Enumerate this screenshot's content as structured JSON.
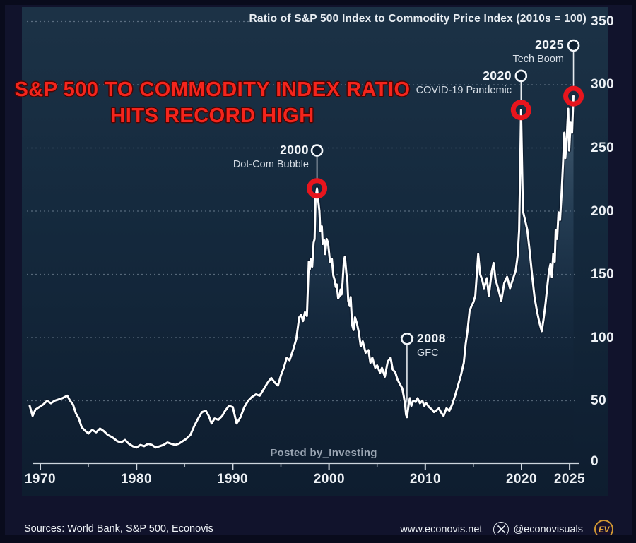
{
  "header": {
    "chart_title": "Ratio of S&P 500 Index to Commodity Price Index (2010s = 100)",
    "headline_line1": "S&P 500 TO COMMODITY INDEX RATIO",
    "headline_line2": "HITS RECORD HIGH",
    "headline_color": "#f5251c"
  },
  "watermark": "Posted by_Investing",
  "footer": {
    "sources": "Sources: World Bank, S&P 500, Econovis",
    "website": "www.econovis.net",
    "x_icon": "x-social-icon",
    "x_handle": "@econovisuals",
    "logo_text": "EV",
    "logo_ring_color": "#cf9733"
  },
  "chart_data": {
    "type": "line",
    "title": "Ratio of S&P 500 Index to Commodity Price Index (2010s = 100)",
    "xlabel": "",
    "ylabel": "",
    "xlim": [
      1968.5,
      2026.5
    ],
    "ylim": [
      0,
      350
    ],
    "grid": "dotted horizontal",
    "line_color": "#ffffff",
    "accent_color": "#e8151d",
    "x_ticks": [
      1970,
      1980,
      1990,
      2000,
      2010,
      2020,
      2025
    ],
    "x_tick_labels": [
      "1970",
      "1980",
      "1990",
      "2000",
      "2010",
      "2020",
      "2025"
    ],
    "y_ticks": [
      50,
      100,
      150,
      200,
      250,
      300,
      350
    ],
    "y_tick_labels_top_down": [
      "350",
      "300",
      "250",
      "200",
      "150",
      "100",
      "50",
      "0"
    ],
    "annotations": [
      {
        "year_label": "2000",
        "event": "Dot-Com Bubble",
        "x_year": 1998.75,
        "marker_value": 248,
        "curve_value": 218,
        "red_ring": true,
        "label_side": "left"
      },
      {
        "year_label": "2008",
        "event": "GFC",
        "x_year": 2008.1,
        "marker_value": 99,
        "curve_value": 37,
        "red_ring": false,
        "label_side": "right"
      },
      {
        "year_label": "2020",
        "event": "COVID-19 Pandemic",
        "x_year": 2019.95,
        "marker_value": 307,
        "curve_value": 280,
        "red_ring": true,
        "label_side": "left"
      },
      {
        "year_label": "2025",
        "event": "Tech Boom",
        "x_year": 2025.4,
        "marker_value": 331,
        "curve_value": 291,
        "red_ring": true,
        "label_side": "left"
      }
    ],
    "series": [
      {
        "name": "S&P 500 to Commodity Price Index ratio (2010s = 100)",
        "points": [
          [
            1968.9,
            46
          ],
          [
            1969.2,
            38
          ],
          [
            1969.5,
            43
          ],
          [
            1969.9,
            45
          ],
          [
            1970.3,
            47
          ],
          [
            1970.7,
            50
          ],
          [
            1971.1,
            48
          ],
          [
            1971.5,
            50
          ],
          [
            1971.9,
            51
          ],
          [
            1972.3,
            52
          ],
          [
            1972.8,
            54
          ],
          [
            1973.1,
            50
          ],
          [
            1973.4,
            47
          ],
          [
            1973.7,
            40
          ],
          [
            1974.0,
            36
          ],
          [
            1974.3,
            29
          ],
          [
            1974.7,
            26
          ],
          [
            1975.0,
            24
          ],
          [
            1975.4,
            27
          ],
          [
            1975.8,
            25
          ],
          [
            1976.2,
            28
          ],
          [
            1976.6,
            26
          ],
          [
            1977.0,
            23
          ],
          [
            1977.5,
            21
          ],
          [
            1978.0,
            18
          ],
          [
            1978.4,
            17
          ],
          [
            1978.8,
            19
          ],
          [
            1979.2,
            16
          ],
          [
            1979.6,
            14
          ],
          [
            1980.0,
            13
          ],
          [
            1980.4,
            15
          ],
          [
            1980.8,
            14
          ],
          [
            1981.2,
            16
          ],
          [
            1981.6,
            15
          ],
          [
            1982.0,
            13
          ],
          [
            1982.4,
            14
          ],
          [
            1982.8,
            15
          ],
          [
            1983.2,
            17
          ],
          [
            1983.6,
            16
          ],
          [
            1984.0,
            15
          ],
          [
            1984.4,
            16
          ],
          [
            1984.8,
            18
          ],
          [
            1985.2,
            20
          ],
          [
            1985.6,
            23
          ],
          [
            1986.0,
            30
          ],
          [
            1986.4,
            36
          ],
          [
            1986.8,
            41
          ],
          [
            1987.2,
            42
          ],
          [
            1987.5,
            38
          ],
          [
            1987.8,
            32
          ],
          [
            1988.1,
            36
          ],
          [
            1988.5,
            35
          ],
          [
            1988.9,
            38
          ],
          [
            1989.2,
            42
          ],
          [
            1989.6,
            46
          ],
          [
            1990.0,
            45
          ],
          [
            1990.4,
            32
          ],
          [
            1990.8,
            37
          ],
          [
            1991.2,
            45
          ],
          [
            1991.6,
            50
          ],
          [
            1992.0,
            53
          ],
          [
            1992.4,
            55
          ],
          [
            1992.8,
            54
          ],
          [
            1993.2,
            59
          ],
          [
            1993.6,
            64
          ],
          [
            1994.0,
            68
          ],
          [
            1994.4,
            64
          ],
          [
            1994.7,
            62
          ],
          [
            1995.0,
            70
          ],
          [
            1995.3,
            76
          ],
          [
            1995.6,
            84
          ],
          [
            1995.9,
            82
          ],
          [
            1996.3,
            91
          ],
          [
            1996.6,
            99
          ],
          [
            1996.9,
            116
          ],
          [
            1997.1,
            118
          ],
          [
            1997.3,
            113
          ],
          [
            1997.5,
            120
          ],
          [
            1997.7,
            117
          ],
          [
            1997.9,
            160
          ],
          [
            1998.0,
            154
          ],
          [
            1998.1,
            162
          ],
          [
            1998.25,
            156
          ],
          [
            1998.4,
            175
          ],
          [
            1998.5,
            178
          ],
          [
            1998.6,
            210
          ],
          [
            1998.75,
            218
          ],
          [
            1998.9,
            207
          ],
          [
            1999.0,
            200
          ],
          [
            1999.1,
            184
          ],
          [
            1999.25,
            188
          ],
          [
            1999.35,
            174
          ],
          [
            1999.5,
            177
          ],
          [
            1999.6,
            166
          ],
          [
            1999.75,
            178
          ],
          [
            1999.9,
            175
          ],
          [
            2000.1,
            160
          ],
          [
            2000.3,
            162
          ],
          [
            2000.45,
            149
          ],
          [
            2000.6,
            145
          ],
          [
            2000.7,
            140
          ],
          [
            2000.8,
            142
          ],
          [
            2000.95,
            131
          ],
          [
            2001.1,
            133
          ],
          [
            2001.2,
            138
          ],
          [
            2001.3,
            134
          ],
          [
            2001.4,
            143
          ],
          [
            2001.55,
            161
          ],
          [
            2001.65,
            164
          ],
          [
            2001.8,
            151
          ],
          [
            2001.9,
            145
          ],
          [
            2002.0,
            129
          ],
          [
            2002.15,
            125
          ],
          [
            2002.25,
            132
          ],
          [
            2002.4,
            110
          ],
          [
            2002.55,
            106
          ],
          [
            2002.7,
            116
          ],
          [
            2002.9,
            111
          ],
          [
            2003.1,
            104
          ],
          [
            2003.3,
            93
          ],
          [
            2003.5,
            97
          ],
          [
            2003.8,
            88
          ],
          [
            2004.1,
            90
          ],
          [
            2004.3,
            80
          ],
          [
            2004.5,
            84
          ],
          [
            2004.8,
            76
          ],
          [
            2005.0,
            78
          ],
          [
            2005.3,
            72
          ],
          [
            2005.5,
            76
          ],
          [
            2005.8,
            69
          ],
          [
            2006.1,
            81
          ],
          [
            2006.4,
            84
          ],
          [
            2006.6,
            75
          ],
          [
            2006.9,
            72
          ],
          [
            2007.1,
            67
          ],
          [
            2007.3,
            64
          ],
          [
            2007.6,
            60
          ],
          [
            2007.75,
            54
          ],
          [
            2007.9,
            47
          ],
          [
            2008.0,
            39
          ],
          [
            2008.1,
            37
          ],
          [
            2008.3,
            48
          ],
          [
            2008.4,
            52
          ],
          [
            2008.55,
            46
          ],
          [
            2008.75,
            50
          ],
          [
            2009.0,
            49
          ],
          [
            2009.2,
            52
          ],
          [
            2009.45,
            48
          ],
          [
            2009.7,
            50
          ],
          [
            2009.9,
            46
          ],
          [
            2010.1,
            48
          ],
          [
            2010.4,
            45
          ],
          [
            2010.7,
            43
          ],
          [
            2010.9,
            41
          ],
          [
            2011.1,
            42
          ],
          [
            2011.4,
            44
          ],
          [
            2011.7,
            40
          ],
          [
            2011.9,
            38
          ],
          [
            2012.2,
            44
          ],
          [
            2012.5,
            42
          ],
          [
            2012.8,
            47
          ],
          [
            2013.1,
            54
          ],
          [
            2013.4,
            62
          ],
          [
            2013.7,
            70
          ],
          [
            2014.0,
            80
          ],
          [
            2014.2,
            95
          ],
          [
            2014.4,
            106
          ],
          [
            2014.6,
            121
          ],
          [
            2014.8,
            125
          ],
          [
            2015.0,
            128
          ],
          [
            2015.2,
            133
          ],
          [
            2015.5,
            166
          ],
          [
            2015.7,
            150
          ],
          [
            2015.9,
            146
          ],
          [
            2016.1,
            139
          ],
          [
            2016.4,
            147
          ],
          [
            2016.6,
            133
          ],
          [
            2016.9,
            152
          ],
          [
            2017.1,
            159
          ],
          [
            2017.3,
            146
          ],
          [
            2017.6,
            138
          ],
          [
            2017.9,
            129
          ],
          [
            2018.2,
            143
          ],
          [
            2018.5,
            148
          ],
          [
            2018.8,
            139
          ],
          [
            2019.1,
            146
          ],
          [
            2019.4,
            153
          ],
          [
            2019.6,
            165
          ],
          [
            2019.75,
            185
          ],
          [
            2019.85,
            230
          ],
          [
            2019.95,
            280
          ],
          [
            2020.15,
            200
          ],
          [
            2020.4,
            192
          ],
          [
            2020.6,
            185
          ],
          [
            2020.85,
            168
          ],
          [
            2021.1,
            149
          ],
          [
            2021.35,
            132
          ],
          [
            2021.6,
            121
          ],
          [
            2021.85,
            112
          ],
          [
            2022.1,
            105
          ],
          [
            2022.3,
            115
          ],
          [
            2022.5,
            127
          ],
          [
            2022.7,
            142
          ],
          [
            2022.85,
            152
          ],
          [
            2023.0,
            158
          ],
          [
            2023.15,
            148
          ],
          [
            2023.3,
            166
          ],
          [
            2023.45,
            160
          ],
          [
            2023.55,
            185
          ],
          [
            2023.7,
            178
          ],
          [
            2023.85,
            199
          ],
          [
            2024.0,
            193
          ],
          [
            2024.15,
            212
          ],
          [
            2024.3,
            236
          ],
          [
            2024.45,
            262
          ],
          [
            2024.55,
            242
          ],
          [
            2024.7,
            258
          ],
          [
            2024.85,
            281
          ],
          [
            2024.95,
            248
          ],
          [
            2025.1,
            270
          ],
          [
            2025.25,
            262
          ],
          [
            2025.4,
            291
          ]
        ]
      }
    ]
  }
}
